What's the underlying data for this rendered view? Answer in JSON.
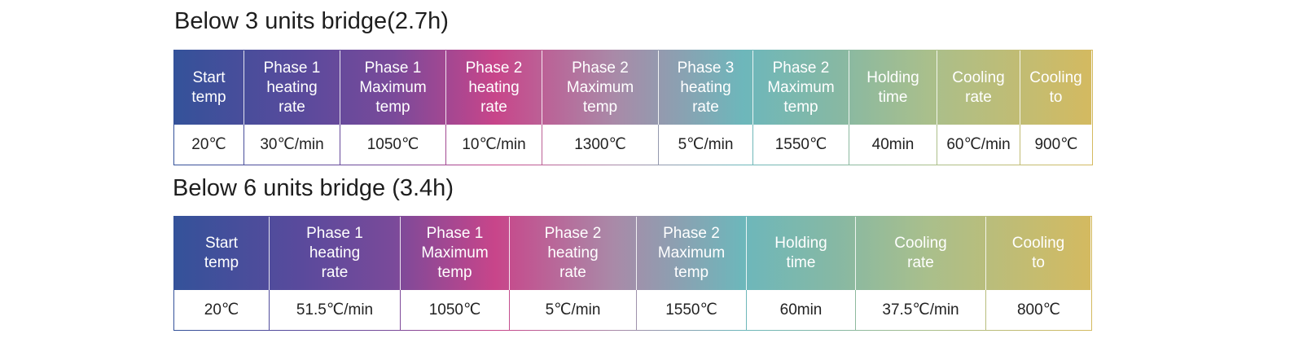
{
  "tables": [
    {
      "title": "Below 3 units bridge(2.7h)",
      "headers": [
        "Start\ntemp",
        "Phase 1\nheating\nrate",
        "Phase 1\nMaximum\ntemp",
        "Phase 2\nheating\nrate",
        "Phase 2\nMaximum\ntemp",
        "Phase 3\nheating\nrate",
        "Phase 2\nMaximum\ntemp",
        "Holding\ntime",
        "Cooling\nrate",
        "Cooling\nto"
      ],
      "row": [
        "20℃",
        "30℃/min",
        "1050℃",
        "10℃/min",
        "1300℃",
        "5℃/min",
        "1550℃",
        "40min",
        "60℃/min",
        "900℃"
      ]
    },
    {
      "title": "Below 6 units bridge (3.4h)",
      "headers": [
        "Start\ntemp",
        "Phase 1\nheating\nrate",
        "Phase 1\nMaximum\ntemp",
        "Phase 2\nheating\nrate",
        "Phase 2\nMaximum\ntemp",
        "Holding\ntime",
        "Cooling\nrate",
        "Cooling\nto"
      ],
      "row": [
        "20℃",
        "51.5℃/min",
        "1050℃",
        "5℃/min",
        "1550℃",
        "60min",
        "37.5℃/min",
        "800℃"
      ]
    }
  ]
}
